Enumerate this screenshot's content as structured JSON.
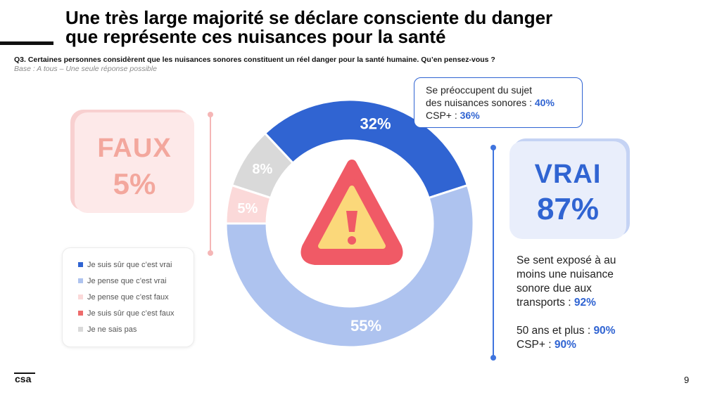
{
  "title_line1": "Une très large majorité se déclare consciente du danger",
  "title_line2": "que représente ces nuisances pour la santé",
  "question": "Q3. Certaines personnes considèrent que les nuisances sonores constituent un réel danger pour la santé humaine. Qu’en pensez-vous ?",
  "base": "Base : A tous – Une seule réponse possible",
  "faux": {
    "label": "FAUX",
    "value": "5%"
  },
  "vrai": {
    "label": "VRAI",
    "value": "87%"
  },
  "callout": {
    "line1": "Se préoccupent du sujet",
    "line2_text": "des nuisances sonores : ",
    "line2_value": "40%",
    "line3_text": "CSP+ : ",
    "line3_value": "36%"
  },
  "right_block": {
    "line1": "Se sent exposé à au",
    "line2": "moins une nuisance",
    "line3": "sonore due aux",
    "line4_text": "transports : ",
    "line4_value": "92%",
    "line5_text": "50 ans et plus : ",
    "line5_value": "90%",
    "line6_text": "CSP+ : ",
    "line6_value": "90%"
  },
  "chart_data": {
    "type": "pie",
    "variant": "donut",
    "categories": [
      "Je suis sûr que c’est vrai",
      "Je pense que c’est vrai",
      "Je pense que c’est faux",
      "Je suis sûr que c’est faux",
      "Je ne sais pas"
    ],
    "values": [
      32,
      55,
      5,
      0,
      8
    ],
    "labels": [
      "32%",
      "55%",
      "5%",
      "",
      "8%"
    ],
    "colors": [
      "#3064d2",
      "#aec3ef",
      "#fbd9d9",
      "#ee6b6b",
      "#d9d9d9"
    ],
    "legend_position": "bottom-left"
  },
  "center_icon": "warning-triangle-icon",
  "logo_text": "csa",
  "page_number": "9"
}
